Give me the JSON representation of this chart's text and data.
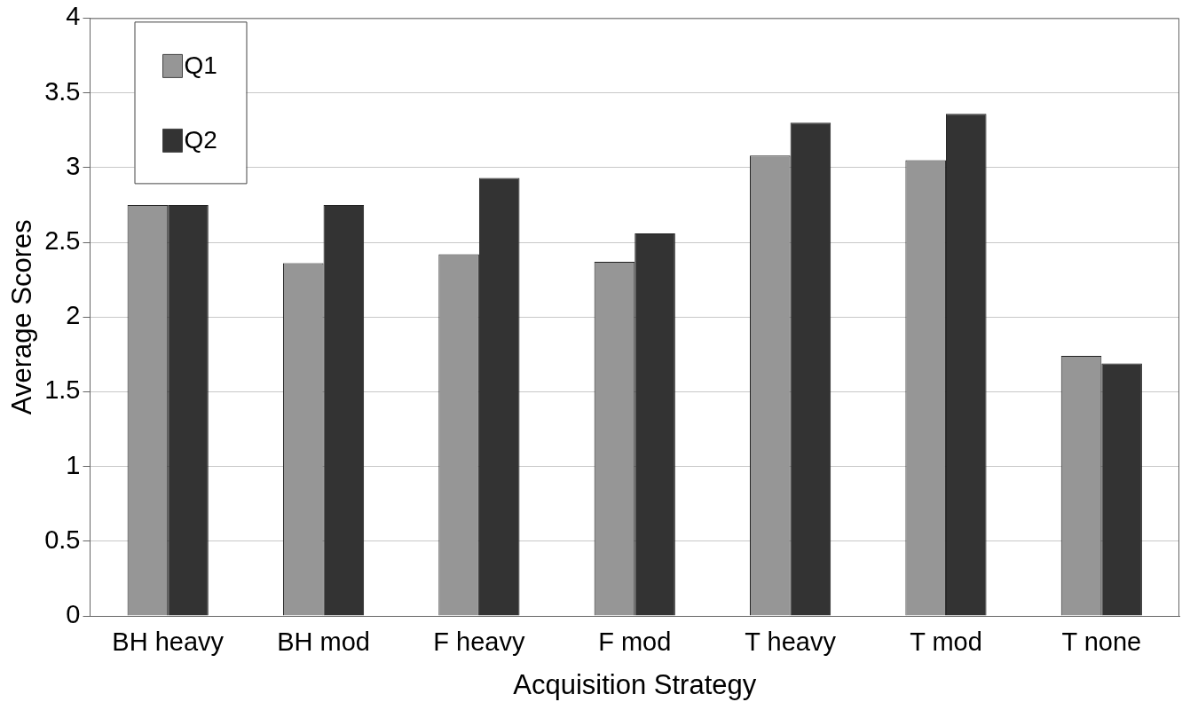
{
  "chart_data": {
    "type": "bar",
    "xlabel": "Acquisition Strategy",
    "ylabel": "Average Scores",
    "categories": [
      "BH heavy",
      "BH mod",
      "F heavy",
      "F mod",
      "T heavy",
      "T mod",
      "T none"
    ],
    "series": [
      {
        "name": "Q1",
        "color": "#969696",
        "values": [
          2.75,
          2.36,
          2.42,
          2.37,
          3.08,
          3.05,
          1.74
        ]
      },
      {
        "name": "Q2",
        "color": "#333333",
        "values": [
          2.75,
          2.75,
          2.93,
          2.56,
          3.3,
          3.36,
          1.69
        ]
      }
    ],
    "ylim": [
      0,
      4
    ],
    "yticks": [
      0,
      0.5,
      1,
      1.5,
      2,
      2.5,
      3,
      3.5,
      4
    ],
    "grid": "y",
    "legend": "top left"
  }
}
